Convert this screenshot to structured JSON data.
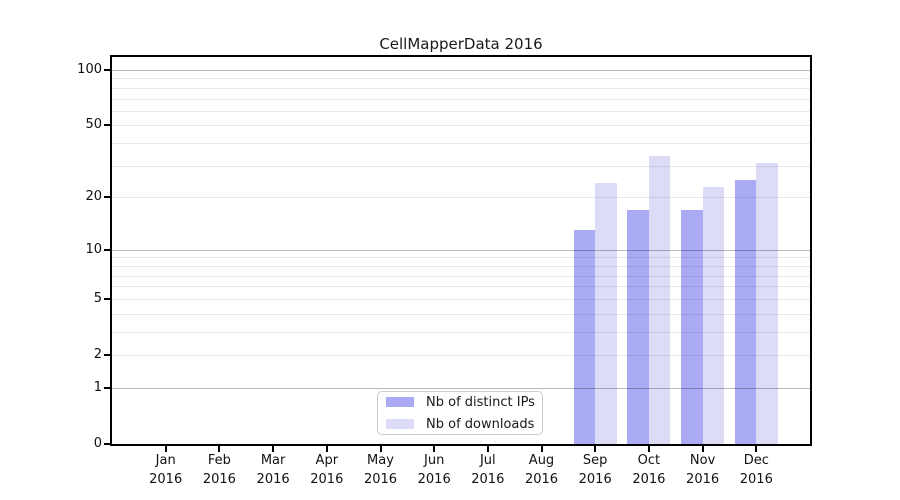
{
  "title": "CellMapperData 2016",
  "legend": {
    "items": [
      {
        "label": "Nb of distinct IPs",
        "color": "#aaaaf5"
      },
      {
        "label": "Nb of downloads",
        "color": "#dcdcf6"
      }
    ]
  },
  "colors": {
    "bar_distinct_ips": "#aaaaf5",
    "bar_downloads": "#dcdcf6",
    "grid_major": "rgba(0,0,0,0.27)",
    "grid_minor": "rgba(0,0,0,0.085)",
    "axis": "#000000",
    "text": "#1a1a1a"
  },
  "chart_data": {
    "type": "bar",
    "title": "CellMapperData 2016",
    "xlabel": "",
    "ylabel": "",
    "categories": [
      "Jan",
      "Feb",
      "Mar",
      "Apr",
      "May",
      "Jun",
      "Jul",
      "Aug",
      "Sep",
      "Oct",
      "Nov",
      "Dec"
    ],
    "category_year": "2016",
    "series": [
      {
        "name": "Nb of distinct IPs",
        "color": "#aaaaf5",
        "values": [
          0,
          0,
          0,
          0,
          0,
          0,
          0,
          0,
          13,
          17,
          17,
          25
        ]
      },
      {
        "name": "Nb of downloads",
        "color": "#dcdcf6",
        "values": [
          0,
          0,
          0,
          0,
          0,
          0,
          0,
          0,
          24,
          34,
          23,
          31
        ]
      }
    ],
    "yscale": "symlog",
    "yticks": [
      0,
      1,
      2,
      5,
      10,
      20,
      50,
      100
    ],
    "major_gridlines": [
      1,
      10,
      100
    ],
    "minor_gridlines": [
      2,
      3,
      4,
      5,
      6,
      7,
      8,
      9,
      20,
      30,
      40,
      50,
      60,
      70,
      80,
      90
    ],
    "ylim": [
      0,
      118
    ],
    "grid": true,
    "legend_position": "lower center-right inside plot"
  }
}
